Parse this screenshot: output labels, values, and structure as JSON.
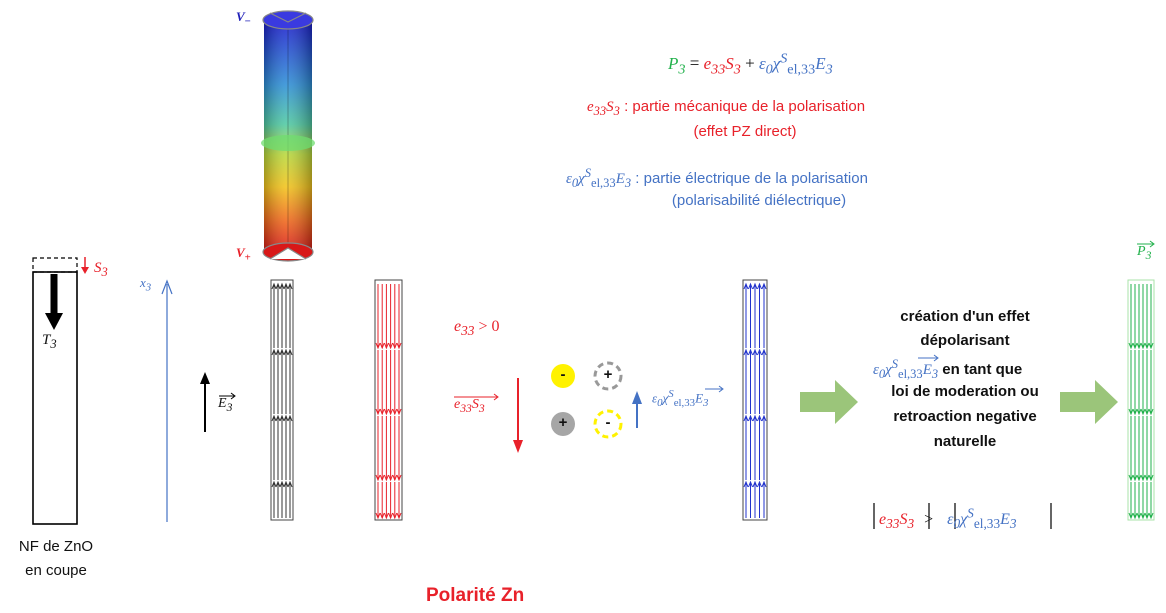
{
  "equation": {
    "P3": "P",
    "P3_sub": "3",
    "eq": " = ",
    "e33S3_term": "e",
    "e33_sub": "33",
    "S3_term": "S",
    "S3_sub": "3",
    "plus": " + ",
    "eps_term": "ε",
    "eps_sub": "0",
    "chi_term": "χ",
    "chi_sup": "S",
    "chi_sub": "el,33",
    "E3_term": "E",
    "E3_sub": "3"
  },
  "mechanical": {
    "label": " : partie mécanique de la polarisation",
    "paren": "(effet PZ direct)"
  },
  "electrical": {
    "label": " : partie électrique de la polarisation",
    "paren": "(polarisabilité diélectrique)"
  },
  "nf": {
    "line1": "NF de ZnO",
    "line2": "en coupe"
  },
  "labels": {
    "V_minus": "V",
    "minus_sign": "−",
    "V_plus": "V",
    "plus_sign": "+",
    "x3": "x",
    "x3_sub": "3",
    "S3": "S",
    "S3_sub": "3",
    "T3": "T",
    "T3_sub": "3",
    "E3": "E",
    "E3_sub": "3",
    "e33_gt": " > 0",
    "P3_vec": "P",
    "P3_vec_sub": "3"
  },
  "charges": {
    "minus": "-",
    "plus": "+"
  },
  "depolar": {
    "line1": "création d'un effet",
    "line2": "dépolarisant",
    "line3": " en tant que",
    "line4": "loi de moderation ou",
    "line5": "retroaction negative",
    "line6": "naturelle"
  },
  "inequality": {
    "gt": " > "
  },
  "title": "Polarité Zn",
  "colors": {
    "red": "#e8212a",
    "blue": "#4472c4",
    "green": "#22b14c",
    "arrow_green": "#9bc57a",
    "yellow": "#fff200"
  }
}
